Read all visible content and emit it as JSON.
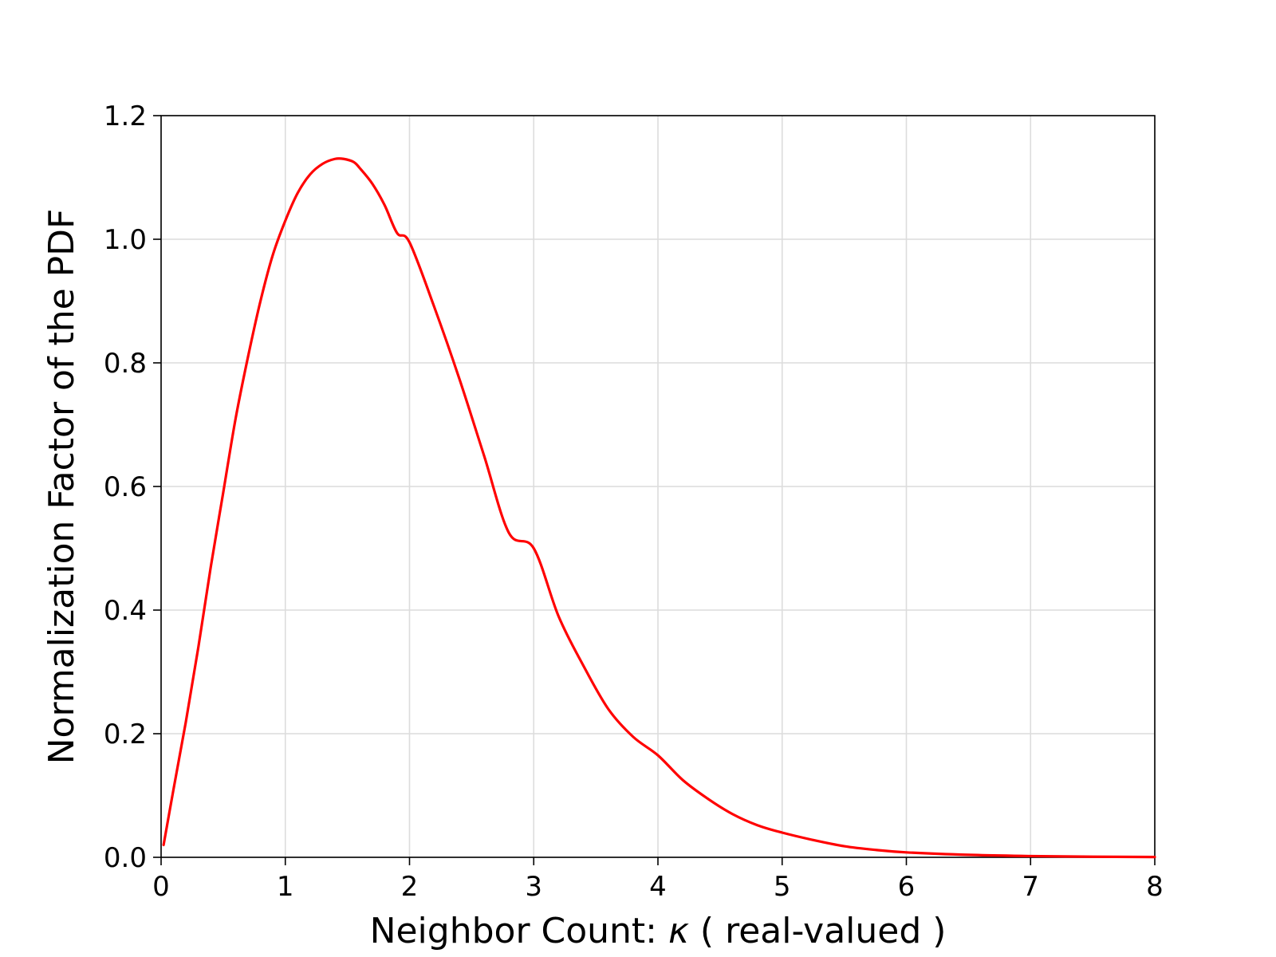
{
  "chart_data": {
    "type": "line",
    "xlabel_prefix": "Neighbor Count: ",
    "xlabel_symbol": "κ",
    "xlabel_suffix": " ( real-valued )",
    "ylabel": "Normalization Factor of the PDF",
    "xlim": [
      0,
      8
    ],
    "ylim": [
      0,
      1.2
    ],
    "x_ticks": [
      "0",
      "1",
      "2",
      "3",
      "4",
      "5",
      "6",
      "7",
      "8"
    ],
    "y_ticks": [
      "0.0",
      "0.2",
      "0.4",
      "0.6",
      "0.8",
      "1.0",
      "1.2"
    ],
    "grid": true,
    "series": [
      {
        "color": "#ff0000",
        "x": [
          0.02,
          0.1,
          0.2,
          0.3,
          0.4,
          0.5,
          0.6,
          0.7,
          0.8,
          0.9,
          1.0,
          1.1,
          1.2,
          1.3,
          1.4,
          1.47,
          1.55,
          1.6,
          1.7,
          1.8,
          1.9,
          2.0,
          2.2,
          2.4,
          2.6,
          2.8,
          3.0,
          3.2,
          3.4,
          3.6,
          3.8,
          4.0,
          4.2,
          4.4,
          4.6,
          4.8,
          5.0,
          5.25,
          5.5,
          5.75,
          6.0,
          6.5,
          7.0,
          7.5,
          8.0
        ],
        "y": [
          0.02,
          0.11,
          0.22,
          0.34,
          0.47,
          0.59,
          0.71,
          0.81,
          0.9,
          0.975,
          1.03,
          1.075,
          1.105,
          1.122,
          1.13,
          1.13,
          1.125,
          1.115,
          1.09,
          1.055,
          1.01,
          0.995,
          0.89,
          0.775,
          0.65,
          0.525,
          0.5,
          0.39,
          0.31,
          0.24,
          0.195,
          0.165,
          0.125,
          0.095,
          0.07,
          0.052,
          0.04,
          0.028,
          0.018,
          0.012,
          0.008,
          0.004,
          0.002,
          0.001,
          0.0005
        ]
      }
    ]
  }
}
